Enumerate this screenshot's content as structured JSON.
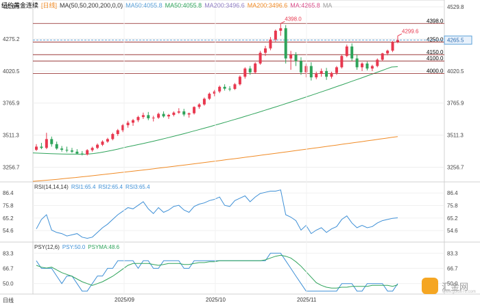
{
  "header": {
    "title": "纽约黄金连续",
    "period": "[日线]",
    "ma_label": "MA(50,50,200,200,0,0)",
    "ma_values": [
      {
        "label": "MA50:4055.8",
        "color": "#5aa0d8"
      },
      {
        "label": "MA50:4055.8",
        "color": "#2ea35a"
      },
      {
        "label": "MA200:3496.6",
        "color": "#8e7cc3"
      },
      {
        "label": "MA200:3496.6",
        "color": "#f08a24"
      },
      {
        "label": "MA:4265.8",
        "color": "#d94d8a"
      },
      {
        "label": "MA",
        "color": "#999999"
      }
    ]
  },
  "rsi_header": {
    "label": "RSI(14,14,14)",
    "values": [
      {
        "label": "RSI1:65.4",
        "color": "#3d8fd6"
      },
      {
        "label": "RSI2:65.4",
        "color": "#3d8fd6"
      },
      {
        "label": "RSI3:65.4",
        "color": "#3d8fd6"
      }
    ]
  },
  "psy_header": {
    "label": "PSY(12,6)",
    "values": [
      {
        "label": "PSY:50.0",
        "color": "#3d8fd6"
      },
      {
        "label": "PSYMA:48.6",
        "color": "#2ea35a"
      }
    ]
  },
  "watermark": {
    "name": "汇金网",
    "url": "www.gold678.com"
  },
  "colors": {
    "up": "#e8384f",
    "down": "#2ea35a",
    "ma50": "#2ea35a",
    "ma200": "#f08a24",
    "rsi": "#3d8fd6",
    "psy": "#3d8fd6",
    "psyma": "#2ea35a",
    "level": "#8b1a1a"
  },
  "chart_data": [
    {
      "type": "candlestick",
      "title": "纽约黄金连续",
      "y_ticks": [
        4529.8,
        4275.2,
        4020.5,
        3765.9,
        3511.3,
        3256.7
      ],
      "ylim": [
        3140,
        4529.8
      ],
      "x_ticks": [
        "2025/09",
        "2025/10",
        "2025/11"
      ],
      "current_price": 4265.5,
      "annotations": [
        {
          "label": "4398.0",
          "value": 4398.0
        },
        {
          "label": "4299.6",
          "value": 4299.6
        }
      ],
      "levels": [
        4398.0,
        4250.0,
        4150.0,
        4100.0,
        4000.0
      ],
      "level_labels": [
        "4398.0",
        "4250.0",
        "4150.0",
        "4100.0",
        "4000.0"
      ],
      "candles": [
        [
          3395,
          3440,
          3385,
          3420
        ],
        [
          3420,
          3450,
          3400,
          3410
        ],
        [
          3410,
          3530,
          3400,
          3480
        ],
        [
          3480,
          3500,
          3420,
          3440
        ],
        [
          3440,
          3460,
          3395,
          3405
        ],
        [
          3405,
          3425,
          3380,
          3395
        ],
        [
          3395,
          3420,
          3375,
          3390
        ],
        [
          3390,
          3410,
          3370,
          3380
        ],
        [
          3380,
          3400,
          3360,
          3365
        ],
        [
          3365,
          3385,
          3350,
          3358
        ],
        [
          3358,
          3400,
          3350,
          3392
        ],
        [
          3392,
          3420,
          3380,
          3410
        ],
        [
          3410,
          3445,
          3400,
          3435
        ],
        [
          3435,
          3470,
          3425,
          3460
        ],
        [
          3460,
          3490,
          3450,
          3480
        ],
        [
          3480,
          3530,
          3470,
          3520
        ],
        [
          3520,
          3560,
          3505,
          3550
        ],
        [
          3550,
          3600,
          3535,
          3590
        ],
        [
          3590,
          3625,
          3570,
          3610
        ],
        [
          3610,
          3640,
          3585,
          3630
        ],
        [
          3630,
          3665,
          3615,
          3655
        ],
        [
          3655,
          3690,
          3640,
          3670
        ],
        [
          3670,
          3695,
          3630,
          3645
        ],
        [
          3645,
          3665,
          3620,
          3650
        ],
        [
          3650,
          3690,
          3640,
          3680
        ],
        [
          3680,
          3700,
          3650,
          3660
        ],
        [
          3660,
          3680,
          3640,
          3672
        ],
        [
          3672,
          3700,
          3660,
          3690
        ],
        [
          3690,
          3725,
          3680,
          3700
        ],
        [
          3700,
          3720,
          3660,
          3675
        ],
        [
          3675,
          3690,
          3650,
          3685
        ],
        [
          3685,
          3740,
          3675,
          3735
        ],
        [
          3735,
          3765,
          3720,
          3755
        ],
        [
          3755,
          3810,
          3745,
          3800
        ],
        [
          3800,
          3850,
          3790,
          3840
        ],
        [
          3840,
          3870,
          3820,
          3858
        ],
        [
          3858,
          3905,
          3845,
          3895
        ],
        [
          3895,
          3915,
          3865,
          3880
        ],
        [
          3880,
          3900,
          3860,
          3878
        ],
        [
          3878,
          3925,
          3870,
          3915
        ],
        [
          3915,
          3985,
          3905,
          3975
        ],
        [
          3975,
          4050,
          3960,
          4040
        ],
        [
          4040,
          4060,
          3990,
          4010
        ],
        [
          4010,
          4090,
          4000,
          4080
        ],
        [
          4080,
          4180,
          4070,
          4165
        ],
        [
          4165,
          4220,
          4140,
          4200
        ],
        [
          4200,
          4290,
          4185,
          4270
        ],
        [
          4270,
          4350,
          4255,
          4340
        ],
        [
          4340,
          4398,
          4300,
          4360
        ],
        [
          4360,
          4385,
          4080,
          4120
        ],
        [
          4120,
          4180,
          4030,
          4150
        ],
        [
          4150,
          4170,
          4060,
          4100
        ],
        [
          4100,
          4130,
          3990,
          4010
        ],
        [
          4010,
          4080,
          3970,
          4060
        ],
        [
          4060,
          4090,
          3945,
          3970
        ],
        [
          3970,
          4015,
          3955,
          4000
        ],
        [
          4000,
          4040,
          3975,
          4020
        ],
        [
          4020,
          4045,
          3950,
          3975
        ],
        [
          3975,
          4015,
          3960,
          4005
        ],
        [
          4005,
          4060,
          3990,
          4050
        ],
        [
          4050,
          4150,
          4040,
          4140
        ],
        [
          4140,
          4230,
          4130,
          4215
        ],
        [
          4215,
          4240,
          4100,
          4120
        ],
        [
          4120,
          4150,
          4030,
          4050
        ],
        [
          4050,
          4090,
          4020,
          4080
        ],
        [
          4080,
          4095,
          4025,
          4040
        ],
        [
          4040,
          4070,
          4020,
          4060
        ],
        [
          4060,
          4120,
          4050,
          4110
        ],
        [
          4110,
          4165,
          4100,
          4160
        ],
        [
          4160,
          4190,
          4145,
          4182
        ],
        [
          4182,
          4260,
          4170,
          4250
        ],
        [
          4250,
          4299.6,
          4240,
          4265.5
        ]
      ]
    },
    {
      "type": "line",
      "title": "RSI(14,14,14)",
      "y_ticks": [
        86.4,
        75.8,
        65.2,
        54.6
      ],
      "ylim": [
        46,
        90
      ],
      "series": [
        {
          "name": "RSI1",
          "values": [
            56,
            64,
            68,
            55,
            53,
            52,
            50,
            51,
            52,
            49,
            48,
            49,
            53,
            57,
            60,
            64,
            68,
            71,
            74,
            73,
            76,
            79,
            73,
            69,
            74,
            70,
            72,
            75,
            76,
            72,
            70,
            75,
            77,
            78,
            80,
            81,
            83,
            76,
            75,
            80,
            82,
            84,
            79,
            83,
            86,
            87,
            88,
            88,
            89,
            68,
            66,
            63,
            55,
            59,
            52,
            55,
            57,
            53,
            56,
            58,
            64,
            67,
            61,
            57,
            59,
            57,
            58,
            61,
            63,
            64,
            65,
            65.4
          ]
        }
      ]
    },
    {
      "type": "line",
      "title": "PSY(12,6)",
      "y_ticks": [
        83.3,
        66.7,
        50.0
      ],
      "ylim": [
        40,
        88
      ],
      "series": [
        {
          "name": "PSY",
          "values": [
            75,
            66.7,
            66.7,
            66.7,
            58.3,
            50,
            58.3,
            58.3,
            50,
            41.7,
            41.7,
            50,
            58.3,
            58.3,
            66.7,
            66.7,
            75,
            75,
            75,
            75,
            66.7,
            75,
            75,
            66.7,
            66.7,
            75,
            75,
            75,
            75,
            66.7,
            66.7,
            75,
            75,
            75,
            75,
            75,
            75,
            75,
            75,
            75,
            75,
            75,
            75,
            75,
            75,
            75,
            83.3,
            83.3,
            83.3,
            75,
            66.7,
            58.3,
            50,
            41.7,
            41.7,
            41.7,
            41.7,
            41.7,
            41.7,
            41.7,
            50,
            50,
            50,
            41.7,
            41.7,
            50,
            50,
            50,
            50,
            41.7,
            41.7,
            50
          ]
        },
        {
          "name": "PSYMA",
          "values": [
            70,
            68,
            67,
            68,
            65,
            62,
            60,
            58,
            55,
            52,
            50,
            48,
            50,
            52,
            55,
            58,
            62,
            66,
            70,
            72,
            72,
            72,
            72,
            71,
            70,
            71,
            72,
            72,
            72,
            71,
            71,
            72,
            73,
            73,
            74,
            74,
            75,
            75,
            75,
            75,
            75,
            75,
            75,
            75,
            75,
            76,
            78,
            80,
            81,
            80,
            78,
            74,
            69,
            63,
            57,
            51,
            48,
            46,
            45,
            45,
            46,
            46,
            47,
            47,
            47,
            47,
            48,
            48,
            48,
            48,
            47,
            48.6
          ]
        }
      ]
    }
  ]
}
